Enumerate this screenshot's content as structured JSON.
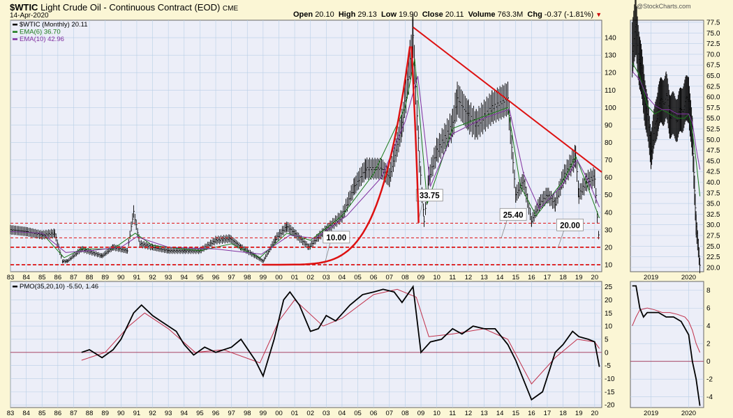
{
  "header": {
    "symbol": "$WTIC",
    "title_rest": "Light Crude Oil - Continuous Contract (EOD)",
    "exchange": "CME",
    "date": "14-Apr-2020",
    "open_label": "Open",
    "open": "20.10",
    "high_label": "High",
    "high": "29.13",
    "low_label": "Low",
    "low": "19.90",
    "close_label": "Close",
    "close": "20.11",
    "volume_label": "Volume",
    "volume": "763.3M",
    "chg_label": "Chg",
    "chg": "-0.37 (-1.81%)",
    "watermark": "@StockCharts.com"
  },
  "colors": {
    "panel_bg": "#eceef8",
    "frame_bg": "#fbf6d5",
    "grid": "#b8cfe6",
    "price_bars": "#000000",
    "ema_fast": "#1a7a1a",
    "ema_slow": "#8030a0",
    "annotation_red": "#dd1111",
    "pmo": "#000000",
    "pmo_signal": "#c0304a"
  },
  "chart_data": [
    {
      "type": "line",
      "panel": "price",
      "legend": [
        {
          "name": "$WTIC (Monthly) 20.11",
          "color": "#000000"
        },
        {
          "name": "EMA(6) 36.70",
          "color": "#1a7a1a"
        },
        {
          "name": "EMA(10) 42.96",
          "color": "#8030a0"
        }
      ],
      "x_ticks": [
        "83",
        "84",
        "85",
        "86",
        "87",
        "88",
        "89",
        "90",
        "91",
        "92",
        "93",
        "94",
        "95",
        "96",
        "97",
        "98",
        "99",
        "00",
        "01",
        "02",
        "03",
        "04",
        "05",
        "06",
        "07",
        "08",
        "09",
        "10",
        "11",
        "12",
        "13",
        "14",
        "15",
        "16",
        "17",
        "18",
        "19",
        "20"
      ],
      "y_ticks": [
        10,
        20,
        30,
        40,
        50,
        60,
        70,
        80,
        90,
        100,
        110,
        120,
        130,
        140
      ],
      "ylim": [
        6,
        150
      ],
      "series": [
        {
          "name": "$WTIC (Monthly)",
          "x": [
            1983.0,
            1984.0,
            1985.0,
            1985.8,
            1986.3,
            1986.6,
            1987.5,
            1988.8,
            1989.5,
            1990.4,
            1990.8,
            1991.2,
            1992.0,
            1993.0,
            1994.0,
            1995.0,
            1996.0,
            1996.9,
            1997.6,
            1998.5,
            1999.0,
            1999.8,
            2000.5,
            2001.0,
            2001.9,
            2002.5,
            2003.0,
            2004.0,
            2004.8,
            2005.5,
            2006.5,
            2007.0,
            2007.8,
            2008.5,
            2008.9,
            2009.2,
            2009.5,
            2010.0,
            2011.0,
            2011.3,
            2012.0,
            2012.5,
            2013.0,
            2013.5,
            2014.5,
            2015.0,
            2015.5,
            2016.0,
            2016.5,
            2017.0,
            2017.5,
            2018.0,
            2018.8,
            2019.0,
            2019.5,
            2020.0,
            2020.3
          ],
          "values": [
            30,
            29,
            27,
            28,
            12,
            12,
            19,
            15,
            20,
            18,
            40,
            22,
            20,
            18,
            18,
            18,
            24,
            25,
            20,
            15,
            12,
            25,
            32,
            28,
            20,
            26,
            30,
            38,
            55,
            65,
            65,
            60,
            90,
            140,
            70,
            35,
            60,
            75,
            90,
            105,
            95,
            90,
            95,
            100,
            105,
            50,
            58,
            35,
            45,
            50,
            45,
            60,
            72,
            50,
            58,
            60,
            20
          ]
        },
        {
          "name": "EMA(6)",
          "x": [
            1983.0,
            1985.0,
            1986.4,
            1987.5,
            1989.5,
            1990.9,
            1992.0,
            1995.0,
            1997.0,
            1998.8,
            2000.5,
            2002.0,
            2004.0,
            2006.0,
            2008.0,
            2008.6,
            2009.4,
            2011.0,
            2013.0,
            2014.5,
            2015.3,
            2016.3,
            2018.0,
            2018.8,
            2019.5,
            2020.3
          ],
          "values": [
            29,
            28,
            14,
            19,
            19,
            28,
            21,
            18,
            22,
            14,
            28,
            24,
            38,
            62,
            100,
            128,
            45,
            88,
            95,
            100,
            55,
            38,
            58,
            72,
            56,
            36.7
          ]
        },
        {
          "name": "EMA(10)",
          "x": [
            1983.0,
            1985.0,
            1986.5,
            1988.0,
            1990.0,
            1991.0,
            1993.0,
            1996.0,
            1998.9,
            2000.7,
            2002.3,
            2004.3,
            2006.5,
            2008.0,
            2008.8,
            2009.6,
            2011.0,
            2013.0,
            2014.6,
            2015.5,
            2016.5,
            2018.0,
            2018.9,
            2019.6,
            2020.3
          ],
          "values": [
            29,
            28,
            17,
            18,
            20,
            26,
            20,
            19,
            16,
            27,
            25,
            38,
            60,
            92,
            118,
            55,
            85,
            94,
            99,
            62,
            42,
            56,
            70,
            58,
            42.96
          ]
        }
      ],
      "annotations": [
        {
          "label": "33.75",
          "value": 33.75,
          "style": "dashed"
        },
        {
          "label": "25.40",
          "value": 25.4,
          "style": "dashed"
        },
        {
          "label": "20.00",
          "value": 20.0,
          "style": "dashed-bold"
        },
        {
          "label": "10.00",
          "value": 10.0,
          "style": "dashed-bold"
        },
        {
          "label": "",
          "type": "trendline",
          "from": [
            2008.5,
            146
          ],
          "to": [
            2021.0,
            63
          ]
        },
        {
          "label": "",
          "type": "parabola",
          "from": [
            1999.0,
            10
          ],
          "to": [
            2008.3,
            135
          ]
        }
      ],
      "grid": true
    },
    {
      "type": "line",
      "panel": "pmo",
      "legend": [
        {
          "name": "PMO(35,20,10) -5.50, 1.46",
          "color": "#000000"
        }
      ],
      "x_ticks": [
        "83",
        "84",
        "85",
        "86",
        "87",
        "88",
        "89",
        "90",
        "91",
        "92",
        "93",
        "94",
        "95",
        "96",
        "97",
        "98",
        "99",
        "00",
        "01",
        "02",
        "03",
        "04",
        "05",
        "06",
        "07",
        "08",
        "09",
        "10",
        "11",
        "12",
        "13",
        "14",
        "15",
        "16",
        "17",
        "18",
        "19",
        "20"
      ],
      "y_ticks": [
        -20,
        -15,
        -10,
        -5,
        0,
        5,
        10,
        15,
        20,
        25
      ],
      "ylim": [
        -21,
        27
      ],
      "series": [
        {
          "name": "PMO",
          "x": [
            1987.5,
            1988.0,
            1988.8,
            1989.5,
            1990.0,
            1990.8,
            1991.3,
            1992.0,
            1992.5,
            1993.5,
            1994.0,
            1994.6,
            1995.3,
            1996.0,
            1997.0,
            1997.6,
            1998.5,
            1999.0,
            1999.7,
            2000.3,
            2000.7,
            2001.3,
            2002.0,
            2002.5,
            2003.0,
            2003.6,
            2004.5,
            2005.3,
            2006.0,
            2006.6,
            2007.3,
            2007.8,
            2008.5,
            2009.0,
            2009.6,
            2010.3,
            2011.0,
            2011.6,
            2012.3,
            2013.0,
            2013.7,
            2014.5,
            2015.0,
            2015.6,
            2016.0,
            2016.7,
            2017.5,
            2018.0,
            2018.6,
            2019.0,
            2019.6,
            2020.0,
            2020.3
          ],
          "values": [
            0,
            1,
            -2,
            1,
            5,
            15,
            18,
            14,
            12,
            8,
            3,
            -1,
            2,
            0,
            2,
            5,
            -3,
            -9,
            5,
            20,
            23,
            18,
            8,
            9,
            14,
            12,
            18,
            22,
            23,
            24,
            23,
            19,
            25,
            0,
            4,
            5,
            9,
            7,
            10,
            9,
            9,
            3,
            -3,
            -12,
            -18,
            -15,
            0,
            3,
            8,
            6,
            5,
            4,
            -5.5
          ]
        },
        {
          "name": "Signal",
          "x": [
            1987.5,
            1989.0,
            1990.5,
            1991.5,
            1993.0,
            1994.7,
            1996.5,
            1998.8,
            2000.0,
            2001.0,
            2002.8,
            2004.0,
            2006.0,
            2007.5,
            2008.7,
            2009.5,
            2011.0,
            2013.0,
            2014.5,
            2016.0,
            2017.5,
            2018.9,
            2020.0,
            2020.3
          ],
          "values": [
            -3,
            0,
            10,
            15,
            9,
            0,
            1,
            -4,
            12,
            20,
            10,
            13,
            22,
            24,
            21,
            6,
            7,
            9,
            5,
            -12,
            -2,
            5,
            4,
            1.46
          ]
        }
      ],
      "grid": true
    },
    {
      "type": "line",
      "panel": "price-daily-inset",
      "x_ticks": [
        "2019",
        "2020"
      ],
      "y_ticks": [
        20.0,
        22.5,
        25.0,
        27.5,
        30.0,
        32.5,
        35.0,
        37.5,
        40.0,
        42.5,
        45.0,
        47.5,
        50.0,
        52.5,
        55.0,
        57.5,
        60.0,
        62.5,
        65.0,
        67.5,
        70.0,
        72.5,
        75.0,
        77.5
      ],
      "ylim": [
        19,
        78
      ],
      "series": [
        {
          "name": "$WTIC",
          "x": [
            2018.5,
            2018.6,
            2018.7,
            2018.8,
            2018.9,
            2019.0,
            2019.2,
            2019.4,
            2019.5,
            2019.7,
            2019.8,
            2020.0,
            2020.1,
            2020.2,
            2020.3
          ],
          "values": [
            72,
            76,
            68,
            62,
            55,
            48,
            58,
            60,
            56,
            55,
            57,
            60,
            50,
            30,
            20
          ]
        },
        {
          "name": "EMA(6)",
          "x": [
            2018.5,
            2018.7,
            2018.9,
            2019.1,
            2019.3,
            2019.5,
            2019.7,
            2019.9,
            2020.0,
            2020.1,
            2020.2,
            2020.3
          ],
          "values": [
            68,
            65,
            58,
            56,
            57,
            56,
            55,
            55,
            56,
            52,
            45,
            36.7
          ]
        },
        {
          "name": "EMA(10)",
          "x": [
            2018.5,
            2018.7,
            2018.9,
            2019.1,
            2019.3,
            2019.5,
            2019.7,
            2019.9,
            2020.0,
            2020.1,
            2020.2,
            2020.3
          ],
          "values": [
            66,
            64,
            60,
            58,
            57,
            57,
            56,
            56,
            56,
            54,
            48,
            42.96
          ]
        }
      ]
    },
    {
      "type": "line",
      "panel": "pmo-daily-inset",
      "x_ticks": [
        "2019",
        "2020"
      ],
      "y_ticks": [
        -4,
        -2,
        0,
        2,
        4,
        6,
        8
      ],
      "ylim": [
        -5.2,
        9
      ],
      "series": [
        {
          "name": "PMO",
          "x": [
            2018.5,
            2018.6,
            2018.7,
            2018.8,
            2018.9,
            2019.0,
            2019.2,
            2019.4,
            2019.6,
            2019.8,
            2020.0,
            2020.1,
            2020.2,
            2020.3
          ],
          "values": [
            8.5,
            8.5,
            6,
            5,
            5.5,
            5.5,
            5.5,
            5,
            5,
            4.5,
            3,
            0,
            -2,
            -5
          ]
        },
        {
          "name": "Signal",
          "x": [
            2018.5,
            2018.6,
            2018.7,
            2018.9,
            2019.1,
            2019.3,
            2019.5,
            2019.7,
            2019.9,
            2020.0,
            2020.1,
            2020.2,
            2020.3
          ],
          "values": [
            4,
            5,
            5.8,
            6,
            5.8,
            5.5,
            5.5,
            5.3,
            5,
            4.5,
            3.5,
            2,
            1
          ]
        }
      ]
    }
  ]
}
